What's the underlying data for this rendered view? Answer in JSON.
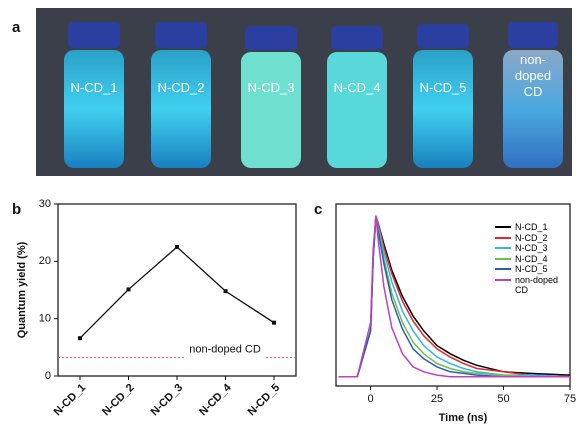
{
  "photo": {
    "label": "a",
    "vials": [
      "N-CD_1",
      "N-CD_2",
      "N-CD_3",
      "N-CD_4",
      "N-CD_5",
      "non-doped CD"
    ]
  },
  "chart_data": [
    {
      "type": "line",
      "panel": "b",
      "ylabel": "Quantum yield (%)",
      "categories": [
        "N-CD_1",
        "N-CD_2",
        "N-CD_3",
        "N-CD_4",
        "N-CD_5"
      ],
      "values": [
        6.6,
        15.1,
        22.5,
        14.8,
        9.3
      ],
      "color": "#111111",
      "ylim": [
        0,
        30
      ],
      "yticks": [
        0,
        10,
        20,
        30
      ],
      "reference": {
        "value": 3.2,
        "label": "non-doped CD",
        "color": "#e05a6a"
      }
    },
    {
      "type": "decay",
      "panel": "c",
      "xlabel": "Time (ns)",
      "xlim": [
        -13,
        75
      ],
      "xticks": [
        0,
        25,
        50,
        75
      ],
      "ylim": [
        0,
        1.05
      ],
      "x": [
        -12,
        -5,
        0,
        1,
        2,
        3,
        5,
        8,
        12,
        16,
        20,
        25,
        30,
        35,
        40,
        50,
        60,
        75
      ],
      "series": [
        {
          "name": "N-CD_1",
          "color": "#000000",
          "values": [
            0.02,
            0.02,
            0.3,
            0.75,
            1.0,
            0.95,
            0.83,
            0.67,
            0.51,
            0.39,
            0.3,
            0.21,
            0.16,
            0.12,
            0.09,
            0.05,
            0.04,
            0.03
          ]
        },
        {
          "name": "N-CD_2",
          "color": "#e8262b",
          "values": [
            0.02,
            0.02,
            0.3,
            0.75,
            1.0,
            0.95,
            0.81,
            0.65,
            0.48,
            0.36,
            0.27,
            0.19,
            0.14,
            0.1,
            0.07,
            0.05,
            0.03,
            0.02
          ]
        },
        {
          "name": "N-CD_3",
          "color": "#35b4e8",
          "values": [
            0.02,
            0.02,
            0.3,
            0.75,
            1.0,
            0.93,
            0.78,
            0.6,
            0.42,
            0.3,
            0.21,
            0.14,
            0.1,
            0.07,
            0.05,
            0.03,
            0.03,
            0.02
          ]
        },
        {
          "name": "N-CD_4",
          "color": "#6cc04a",
          "values": [
            0.02,
            0.02,
            0.3,
            0.75,
            1.0,
            0.91,
            0.74,
            0.53,
            0.35,
            0.23,
            0.16,
            0.1,
            0.07,
            0.05,
            0.04,
            0.03,
            0.02,
            0.02
          ]
        },
        {
          "name": "N-CD_5",
          "color": "#2a5fb8",
          "values": [
            0.02,
            0.02,
            0.3,
            0.75,
            1.0,
            0.9,
            0.71,
            0.49,
            0.31,
            0.19,
            0.13,
            0.08,
            0.05,
            0.04,
            0.03,
            0.02,
            0.02,
            0.02
          ]
        },
        {
          "name": "non-doped CD",
          "color": "#c23fc0",
          "values": [
            0.02,
            0.02,
            0.35,
            0.8,
            1.0,
            0.84,
            0.57,
            0.32,
            0.16,
            0.08,
            0.05,
            0.03,
            0.02,
            0.02,
            0.02,
            0.02,
            0.02,
            0.02
          ]
        }
      ]
    }
  ]
}
